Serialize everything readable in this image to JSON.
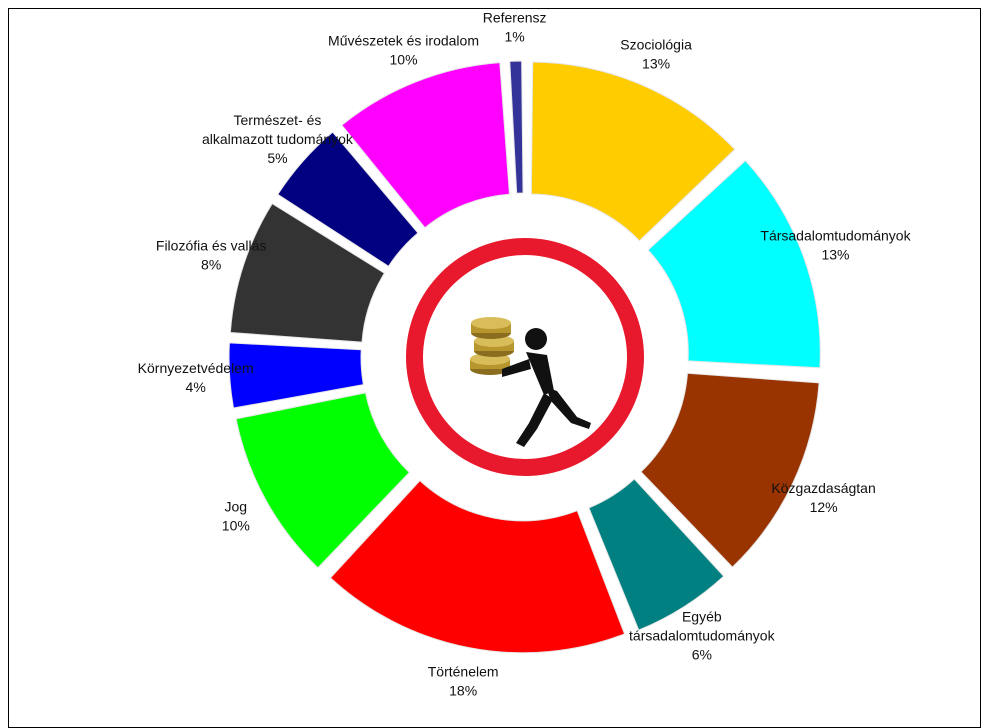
{
  "chart_data": {
    "type": "pie",
    "variant": "donut-exploded",
    "title": "",
    "start_angle_deg": 0,
    "direction": "clockwise",
    "slices": [
      {
        "label": "Szociológia",
        "value": 13,
        "value_label": "13%",
        "color": "#FFCC00"
      },
      {
        "label": "Társadalomtudományok",
        "value": 13,
        "value_label": "13%",
        "color": "#00FFFF"
      },
      {
        "label": "Közgazdaságtan",
        "value": 12,
        "value_label": "12%",
        "color": "#993300"
      },
      {
        "label": "Egyéb társadalomtudományok",
        "value": 6,
        "value_label": "6%",
        "color": "#008080"
      },
      {
        "label": "Történelem",
        "value": 18,
        "value_label": "18%",
        "color": "#FF0000"
      },
      {
        "label": "Jog",
        "value": 10,
        "value_label": "10%",
        "color": "#00FF00"
      },
      {
        "label": "Környezetvédelem",
        "value": 4,
        "value_label": "4%",
        "color": "#0000FF"
      },
      {
        "label": "Filozófia és vallás",
        "value": 8,
        "value_label": "8%",
        "color": "#333333"
      },
      {
        "label": "Természet- és alkalmazott tudományok",
        "value": 5,
        "value_label": "5%",
        "color": "#000080"
      },
      {
        "label": "Művészetek és irodalom",
        "value": 10,
        "value_label": "10%",
        "color": "#FF00FF"
      },
      {
        "label": "Referensz",
        "value": 1,
        "value_label": "1%",
        "color": "#333399"
      }
    ]
  },
  "center_icon": {
    "name": "person-carrying-coins-icon",
    "ring_color": "#E8192C",
    "figure_color": "#111111",
    "coin_color": "#B8962E"
  }
}
